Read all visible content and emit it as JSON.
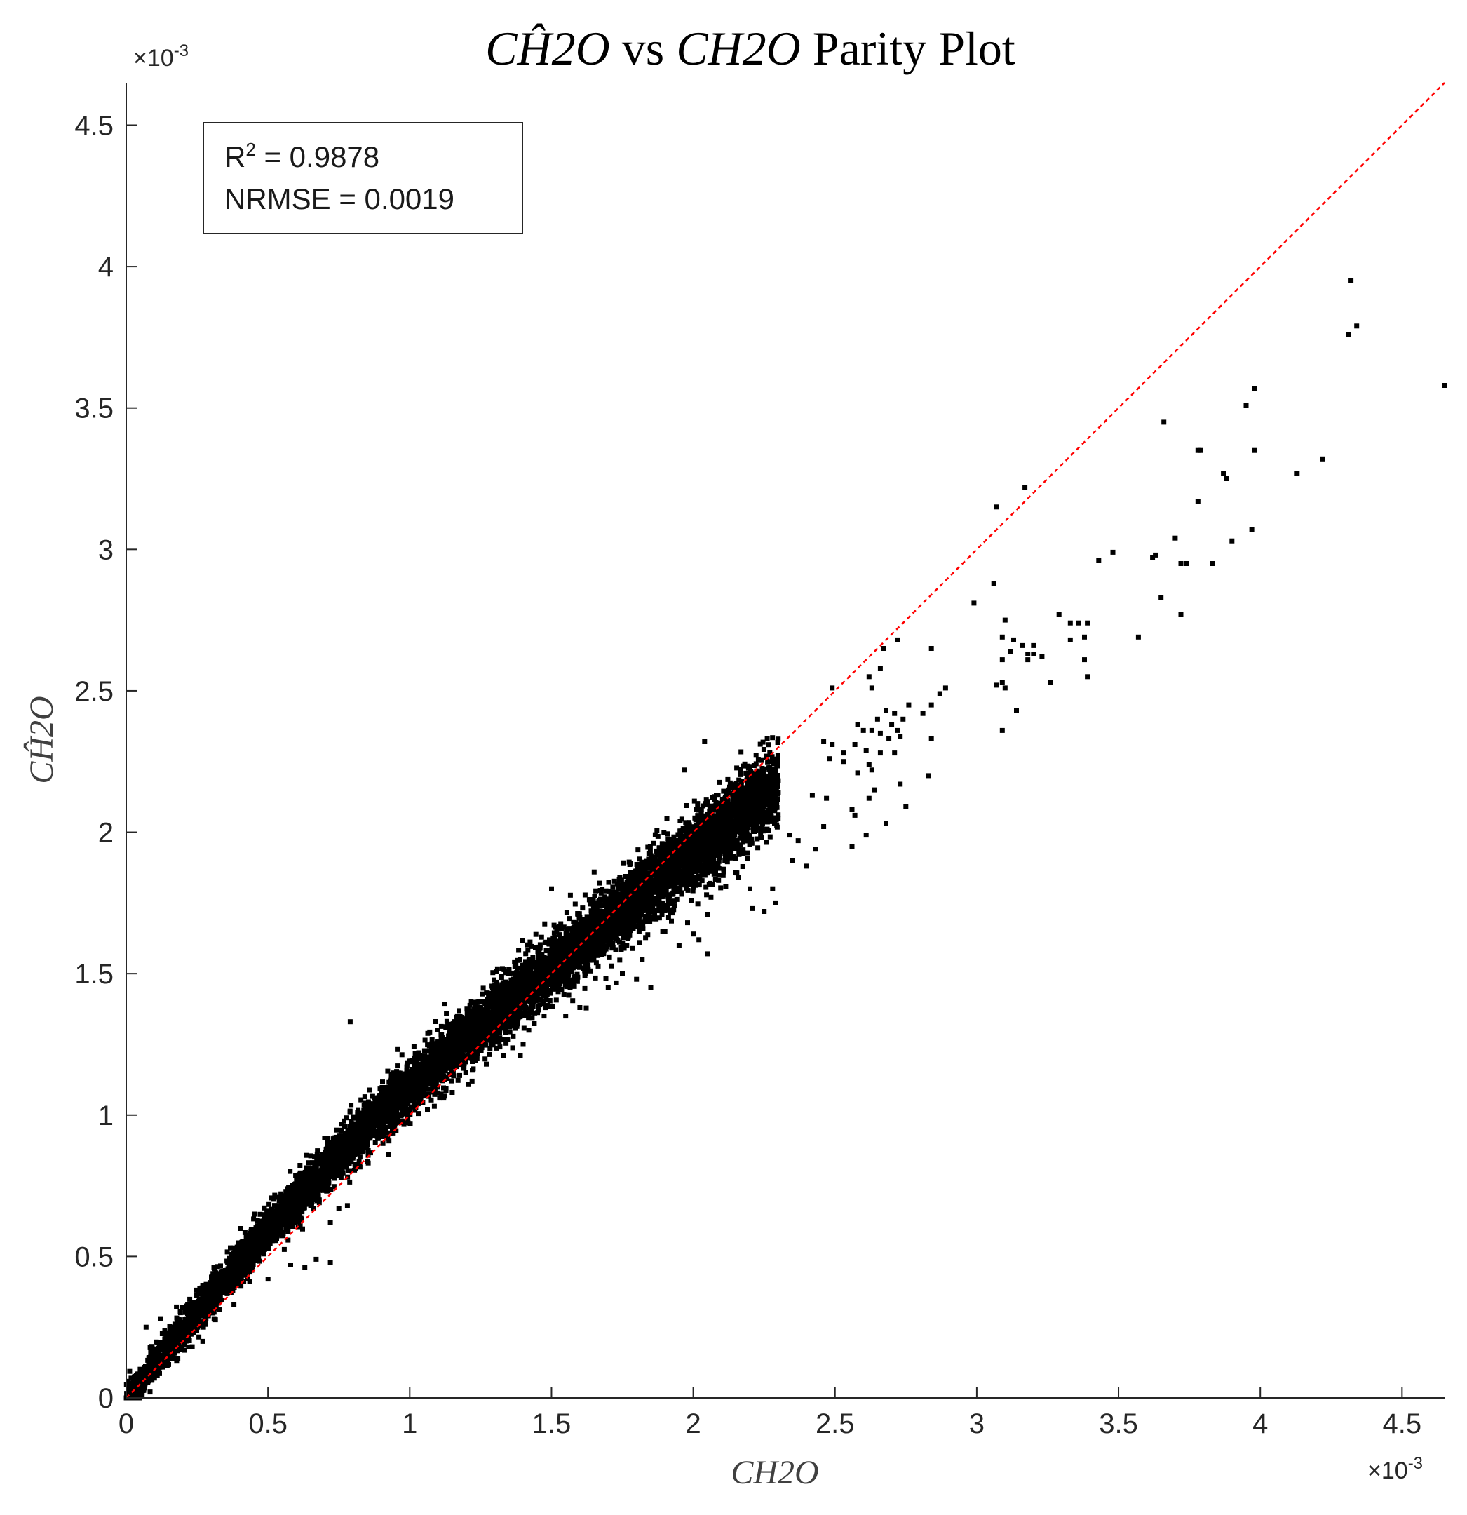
{
  "chart_data": {
    "type": "scatter",
    "title": {
      "math_pred": "CĤ2O",
      "vs": " vs ",
      "math_true": "CH2O",
      "rest": " Parity Plot"
    },
    "xlabel": "CH2O",
    "ylabel": "CĤ2O",
    "x_exponent_label": "×10-3",
    "y_exponent_label": "×10-3",
    "xlim": [
      0,
      4.65
    ],
    "ylim": [
      0,
      4.65
    ],
    "unit_scale": "1e-3",
    "xticks": [
      0,
      0.5,
      1,
      1.5,
      2,
      2.5,
      3,
      3.5,
      4,
      4.5
    ],
    "xtick_labels": [
      "0",
      "0.5",
      "1",
      "1.5",
      "2",
      "2.5",
      "3",
      "3.5",
      "4",
      "4.5"
    ],
    "yticks": [
      0,
      0.5,
      1,
      1.5,
      2,
      2.5,
      3,
      3.5,
      4,
      4.5
    ],
    "ytick_labels": [
      "0",
      "0.5",
      "1",
      "1.5",
      "2",
      "2.5",
      "3",
      "3.5",
      "4",
      "4.5"
    ],
    "grid": false,
    "parity_line": {
      "from": [
        0,
        0
      ],
      "to": [
        4.65,
        4.65
      ],
      "style": "dashed",
      "color": "#ff0000"
    },
    "marker_color": "#000000",
    "annotation": {
      "r2_label": "R",
      "r2_sup": "2",
      "r2_value": " = 0.9878",
      "nrmse": "NRMSE = 0.0019"
    },
    "dense_band": {
      "description_x_range": [
        0,
        2.3
      ],
      "approx_point_count": 9000,
      "relation": "y ≈ x with curvature: y > x below 1.6, y < x above 1.6"
    },
    "outlier_points": [
      [
        4.32,
        3.95
      ],
      [
        4.34,
        3.79
      ],
      [
        4.31,
        3.76
      ],
      [
        4.65,
        3.58
      ],
      [
        3.98,
        3.57
      ],
      [
        3.95,
        3.51
      ],
      [
        3.66,
        3.45
      ],
      [
        3.78,
        3.35
      ],
      [
        3.79,
        3.35
      ],
      [
        3.98,
        3.35
      ],
      [
        4.22,
        3.32
      ],
      [
        4.13,
        3.27
      ],
      [
        3.87,
        3.27
      ],
      [
        3.88,
        3.25
      ],
      [
        3.17,
        3.22
      ],
      [
        3.07,
        3.15
      ],
      [
        3.78,
        3.17
      ],
      [
        3.97,
        3.07
      ],
      [
        3.7,
        3.04
      ],
      [
        3.9,
        3.03
      ],
      [
        3.48,
        2.99
      ],
      [
        3.63,
        2.98
      ],
      [
        3.43,
        2.96
      ],
      [
        3.62,
        2.97
      ],
      [
        3.72,
        2.95
      ],
      [
        3.74,
        2.95
      ],
      [
        3.83,
        2.95
      ],
      [
        3.06,
        2.88
      ],
      [
        3.65,
        2.83
      ],
      [
        2.99,
        2.81
      ],
      [
        3.72,
        2.77
      ],
      [
        3.29,
        2.77
      ],
      [
        3.1,
        2.75
      ],
      [
        3.33,
        2.74
      ],
      [
        3.36,
        2.74
      ],
      [
        3.39,
        2.74
      ],
      [
        3.38,
        2.69
      ],
      [
        3.57,
        2.69
      ],
      [
        3.09,
        2.69
      ],
      [
        3.13,
        2.68
      ],
      [
        3.33,
        2.68
      ],
      [
        3.16,
        2.66
      ],
      [
        3.2,
        2.66
      ],
      [
        2.72,
        2.68
      ],
      [
        2.67,
        2.65
      ],
      [
        3.12,
        2.64
      ],
      [
        3.18,
        2.63
      ],
      [
        3.2,
        2.63
      ],
      [
        2.84,
        2.65
      ],
      [
        3.09,
        2.61
      ],
      [
        3.18,
        2.61
      ],
      [
        3.23,
        2.62
      ],
      [
        3.38,
        2.61
      ],
      [
        2.66,
        2.58
      ],
      [
        3.09,
        2.53
      ],
      [
        3.26,
        2.53
      ],
      [
        2.62,
        2.55
      ],
      [
        3.1,
        2.51
      ],
      [
        3.07,
        2.52
      ],
      [
        2.89,
        2.51
      ],
      [
        2.49,
        2.51
      ],
      [
        2.63,
        2.51
      ],
      [
        3.39,
        2.55
      ],
      [
        2.87,
        2.49
      ],
      [
        2.76,
        2.45
      ],
      [
        2.84,
        2.45
      ],
      [
        3.14,
        2.43
      ],
      [
        2.68,
        2.43
      ],
      [
        2.71,
        2.42
      ],
      [
        2.74,
        2.4
      ],
      [
        2.81,
        2.42
      ],
      [
        2.65,
        2.4
      ],
      [
        2.58,
        2.38
      ],
      [
        3.09,
        2.36
      ],
      [
        2.04,
        2.32
      ],
      [
        2.7,
        2.38
      ],
      [
        2.72,
        2.36
      ],
      [
        2.73,
        2.34
      ],
      [
        2.69,
        2.33
      ],
      [
        2.66,
        2.35
      ],
      [
        2.63,
        2.36
      ],
      [
        2.6,
        2.36
      ],
      [
        2.57,
        2.31
      ],
      [
        2.84,
        2.33
      ],
      [
        2.46,
        2.32
      ],
      [
        2.49,
        2.31
      ],
      [
        2.53,
        2.28
      ],
      [
        2.61,
        2.29
      ],
      [
        2.66,
        2.28
      ],
      [
        2.71,
        2.28
      ],
      [
        2.48,
        2.26
      ],
      [
        2.53,
        2.25
      ],
      [
        2.62,
        2.24
      ],
      [
        2.58,
        2.21
      ],
      [
        2.63,
        2.22
      ],
      [
        2.83,
        2.2
      ],
      [
        2.73,
        2.17
      ],
      [
        1.97,
        2.22
      ],
      [
        2.64,
        2.15
      ],
      [
        2.62,
        2.12
      ],
      [
        2.42,
        2.13
      ],
      [
        2.47,
        2.12
      ],
      [
        2.56,
        2.08
      ],
      [
        2.75,
        2.09
      ],
      [
        2.57,
        2.06
      ],
      [
        2.68,
        2.03
      ],
      [
        2.46,
        2.02
      ],
      [
        2.61,
        1.99
      ],
      [
        2.34,
        1.99
      ],
      [
        2.37,
        1.97
      ],
      [
        2.43,
        1.94
      ],
      [
        2.35,
        1.9
      ],
      [
        2.4,
        1.88
      ],
      [
        2.56,
        1.95
      ],
      [
        2.1,
        1.95
      ],
      [
        2.16,
        1.84
      ],
      [
        2.2,
        1.8
      ],
      [
        2.28,
        1.8
      ],
      [
        2.21,
        1.73
      ],
      [
        2.25,
        1.72
      ],
      [
        2.29,
        1.75
      ],
      [
        2.05,
        1.71
      ],
      [
        1.98,
        1.68
      ],
      [
        2.02,
        1.62
      ],
      [
        2.0,
        1.64
      ],
      [
        1.9,
        1.65
      ],
      [
        1.95,
        1.6
      ],
      [
        2.05,
        1.57
      ],
      [
        1.81,
        1.61
      ],
      [
        1.5,
        1.8
      ],
      [
        1.67,
        1.82
      ],
      [
        1.82,
        1.55
      ],
      [
        1.75,
        1.5
      ],
      [
        1.85,
        1.45
      ],
      [
        1.8,
        1.48
      ],
      [
        1.7,
        1.45
      ],
      [
        1.6,
        1.38
      ],
      [
        1.55,
        1.35
      ],
      [
        1.42,
        1.3
      ],
      [
        1.4,
        1.25
      ],
      [
        1.33,
        1.21
      ],
      [
        1.27,
        1.18
      ],
      [
        1.39,
        1.21
      ],
      [
        1.22,
        1.12
      ],
      [
        1.15,
        1.08
      ],
      [
        1.12,
        1.06
      ],
      [
        0.79,
        1.33
      ],
      [
        0.78,
        0.68
      ],
      [
        0.75,
        0.67
      ],
      [
        0.72,
        0.62
      ],
      [
        0.72,
        0.48
      ],
      [
        0.67,
        0.49
      ],
      [
        0.63,
        0.46
      ],
      [
        0.58,
        0.47
      ],
      [
        0.5,
        0.42
      ],
      [
        0.38,
        0.33
      ],
      [
        0.31,
        0.28
      ],
      [
        0.28,
        0.26
      ],
      [
        0.27,
        0.2
      ],
      [
        0.22,
        0.18
      ],
      [
        0.17,
        0.14
      ],
      [
        0.22,
        0.24
      ],
      [
        0.35,
        0.45
      ],
      [
        0.4,
        0.52
      ],
      [
        0.44,
        0.58
      ],
      [
        0.12,
        0.28
      ],
      [
        0.07,
        0.25
      ]
    ]
  }
}
